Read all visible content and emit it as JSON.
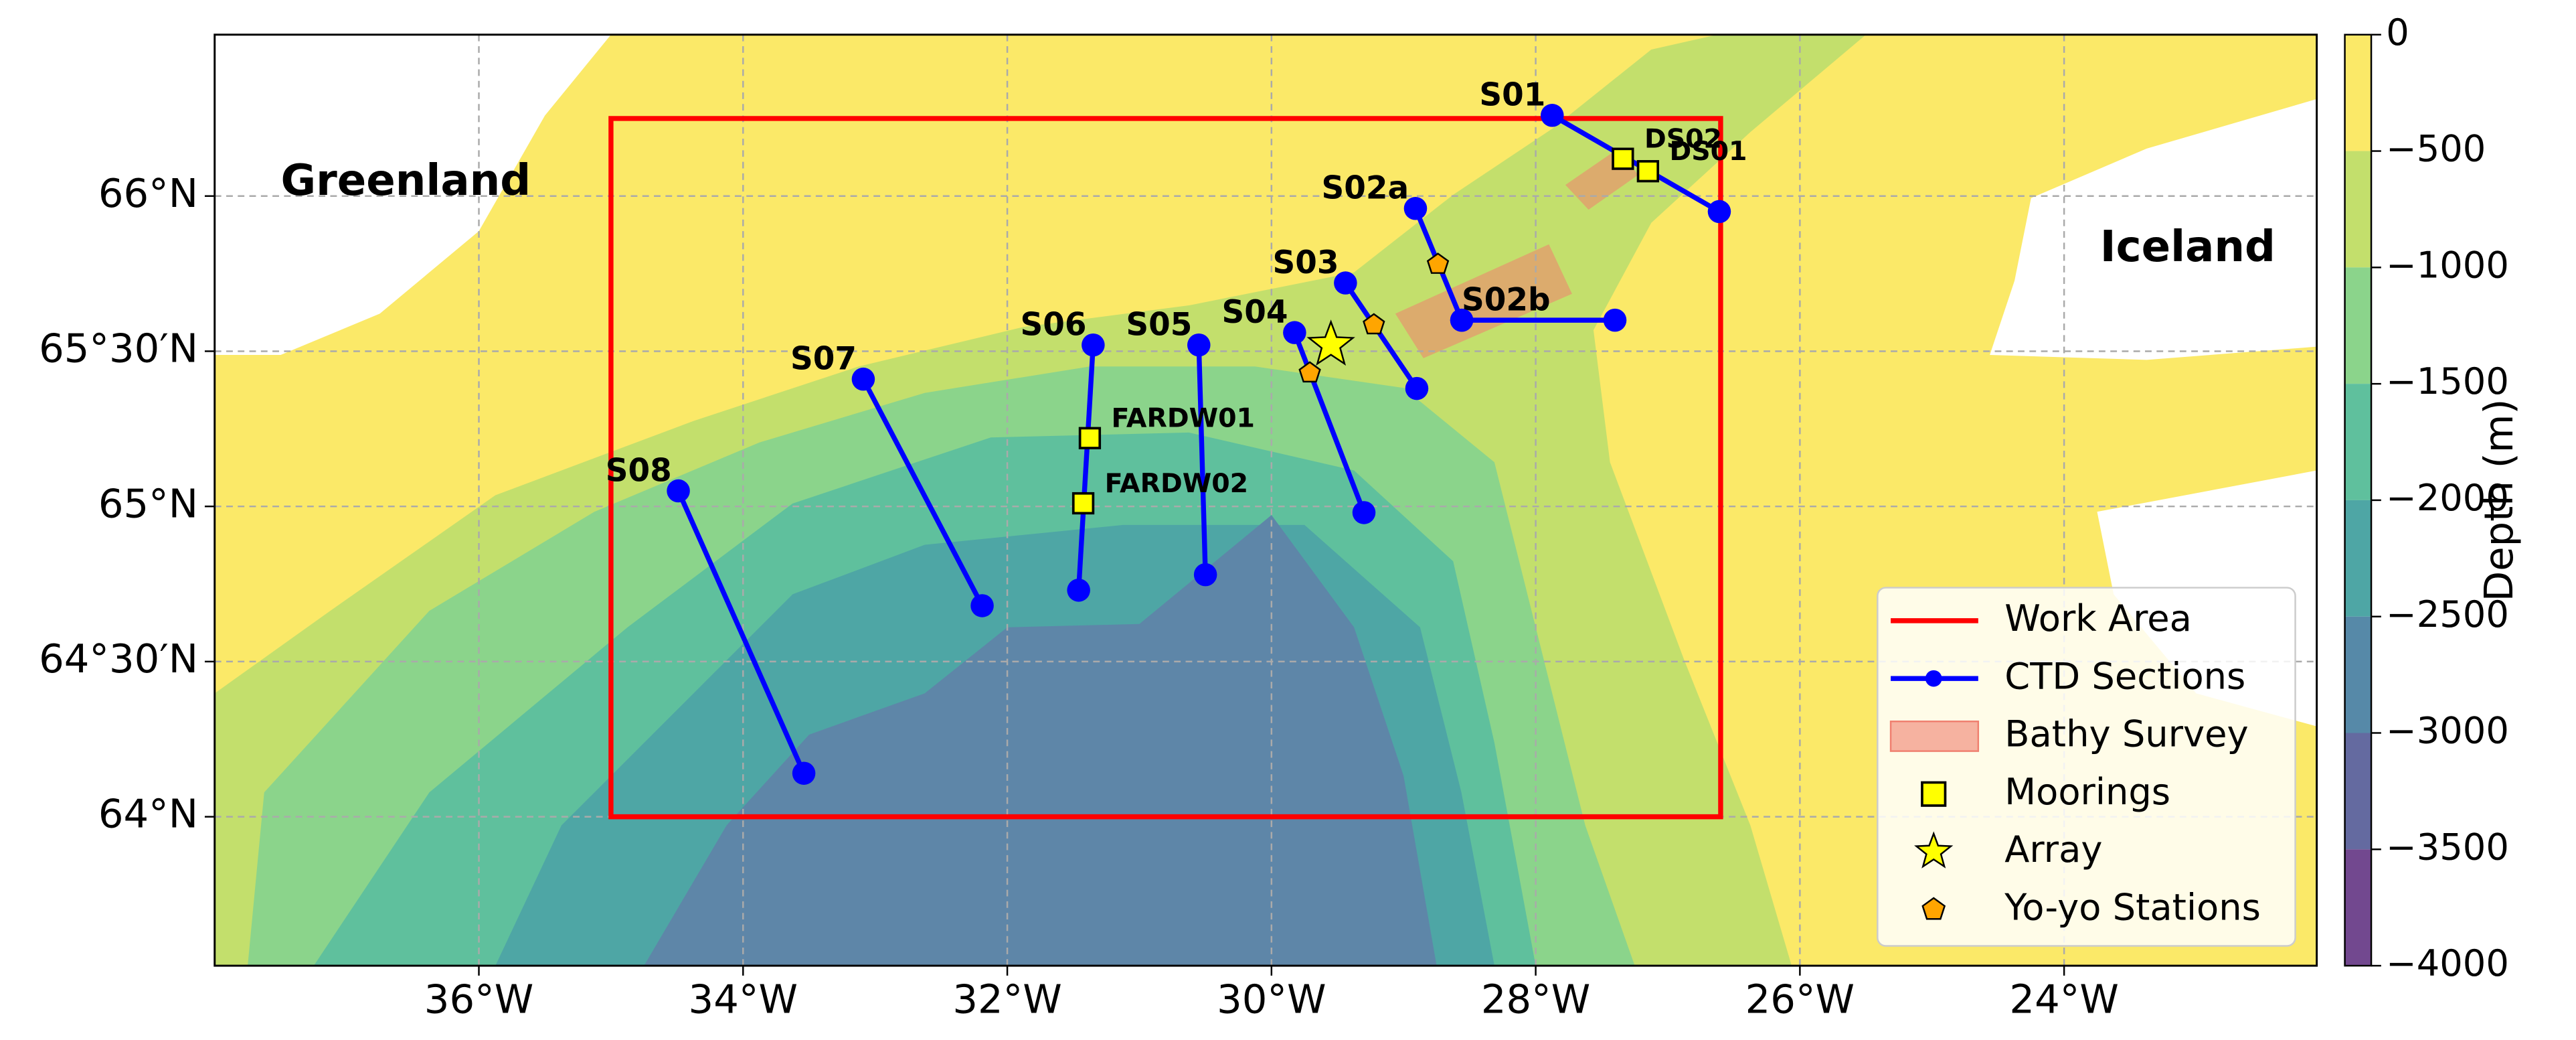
{
  "map": {
    "xlim": [
      -38,
      -22.0875
    ],
    "ylim": [
      63.52,
      66.52
    ],
    "xticks": [
      {
        "value": -36,
        "label": "36°W"
      },
      {
        "value": -34,
        "label": "34°W"
      },
      {
        "value": -32,
        "label": "32°W"
      },
      {
        "value": -30,
        "label": "30°W"
      },
      {
        "value": -28,
        "label": "28°W"
      },
      {
        "value": -26,
        "label": "26°W"
      },
      {
        "value": -24,
        "label": "24°W"
      }
    ],
    "yticks": [
      {
        "value": 64,
        "label": "64°N"
      },
      {
        "value": 64.5,
        "label": "64°30′N"
      },
      {
        "value": 65,
        "label": "65°N"
      },
      {
        "value": 65.5,
        "label": "65°30′N"
      },
      {
        "value": 66,
        "label": "66°N"
      }
    ],
    "grid": true,
    "regions": [
      "Greenland",
      "Iceland"
    ],
    "work_area": {
      "name": "Work Area",
      "color": "#ff0000",
      "lon": [
        -35,
        -26.6
      ],
      "lat": [
        64,
        66.25
      ]
    },
    "sections": {
      "name": "CTD Sections",
      "color": "#0000ff",
      "items": [
        {
          "label": "S01",
          "lon": [
            -27.875,
            -26.61
          ],
          "lat": [
            66.26,
            65.95
          ]
        },
        {
          "label": "S02a",
          "lon": [
            -28.91,
            -28.56
          ],
          "lat": [
            65.96,
            65.6
          ]
        },
        {
          "label": "S02b",
          "lon": [
            -28.56,
            -27.4
          ],
          "lat": [
            65.6,
            65.6
          ]
        },
        {
          "label": "S03",
          "lon": [
            -29.44,
            -28.9
          ],
          "lat": [
            65.72,
            65.38
          ]
        },
        {
          "label": "S04",
          "lon": [
            -29.825,
            -29.3
          ],
          "lat": [
            65.56,
            64.98
          ]
        },
        {
          "label": "S05",
          "lon": [
            -30.55,
            -30.5
          ],
          "lat": [
            65.52,
            64.78
          ]
        },
        {
          "label": "S06",
          "lon": [
            -31.35,
            -31.46
          ],
          "lat": [
            65.52,
            64.73
          ]
        },
        {
          "label": "S07",
          "lon": [
            -33.09,
            -32.19
          ],
          "lat": [
            65.41,
            64.68
          ]
        },
        {
          "label": "S08",
          "lon": [
            -34.49,
            -33.54
          ],
          "lat": [
            65.05,
            64.14
          ]
        }
      ]
    },
    "bathy_survey": {
      "name": "Bathy Survey",
      "color": "#f08070"
    },
    "moorings": {
      "name": "Moorings",
      "color": "#ffff00",
      "items": [
        {
          "label": "DS02",
          "lon": -27.34,
          "lat": 66.12
        },
        {
          "label": "DS01",
          "lon": -27.15,
          "lat": 66.08
        },
        {
          "label": "FARDW01",
          "lon": -31.375,
          "lat": 65.22
        },
        {
          "label": "FARDW02",
          "lon": -31.425,
          "lat": 65.01
        }
      ]
    },
    "array": {
      "name": "Array",
      "color": "#ffff00",
      "lon": -29.55,
      "lat": 65.52
    },
    "yoyo": {
      "name": "Yo-yo Stations",
      "color": "#ffa500",
      "lon": [
        -28.74,
        -29.225,
        -29.71
      ],
      "lat": [
        65.78,
        65.585,
        65.43
      ]
    },
    "colorbar": {
      "label": "Depth (m)",
      "lim": [
        -4000,
        0
      ],
      "ticks": [
        0,
        {
          "value": -500,
          "label": "−500"
        },
        {
          "value": -1000,
          "label": "−1000"
        },
        {
          "value": -1500,
          "label": "−1500"
        },
        {
          "value": -2000,
          "label": "−2000"
        },
        {
          "value": -2500,
          "label": "−2500"
        },
        {
          "value": -3000,
          "label": "−3000"
        },
        {
          "value": -3500,
          "label": "−3500"
        },
        {
          "value": -4000,
          "label": "−4000"
        }
      ],
      "colors": [
        "#fbe968",
        "#c3df6c",
        "#8bd48b",
        "#5fc09d",
        "#4ea6a5",
        "#5689a8",
        "#646aa0",
        "#72488f"
      ]
    }
  }
}
